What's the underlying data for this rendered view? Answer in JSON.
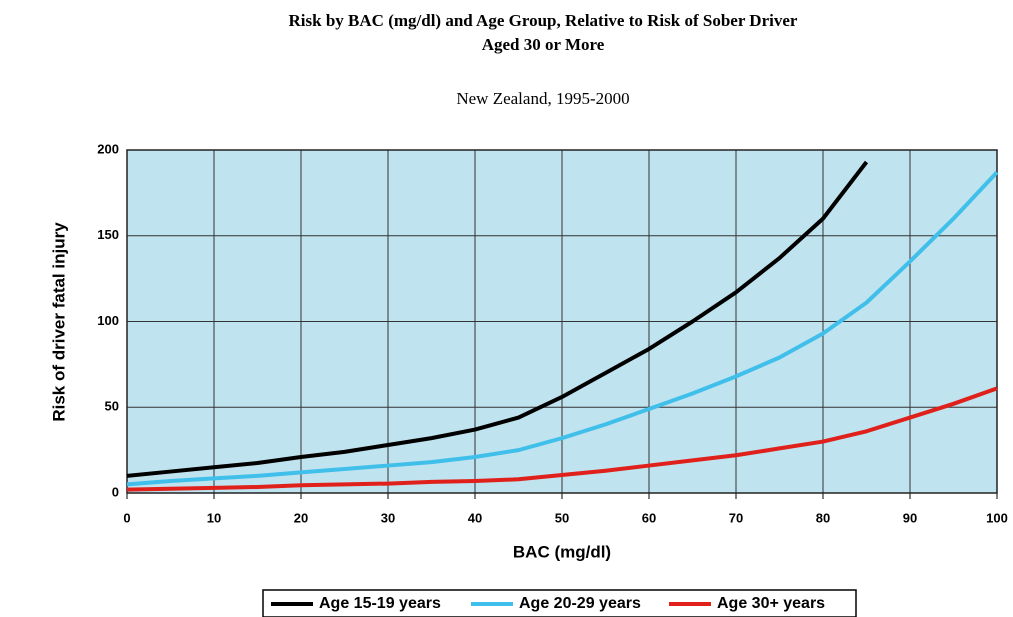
{
  "chart_data": {
    "type": "line",
    "title": "Risk by BAC (mg/dl) and Age Group, Relative to Risk of Sober Driver",
    "title_line2": "Aged 30 or More",
    "subtitle": "New Zealand, 1995-2000",
    "x_label": "BAC (mg/dl)",
    "y_label": "Risk of driver fatal injury",
    "x": [
      0,
      5,
      10,
      15,
      20,
      25,
      30,
      35,
      40,
      45,
      50,
      55,
      60,
      65,
      70,
      75,
      80,
      85,
      90,
      95,
      100
    ],
    "series": [
      {
        "name": "Age 15-19 years",
        "color": "#000000",
        "values": [
          10,
          12.5,
          15,
          17.5,
          21,
          24,
          28,
          32,
          37,
          44,
          56,
          70,
          84,
          100,
          117,
          137,
          160,
          193,
          null,
          null,
          null
        ]
      },
      {
        "name": "Age 20-29 years",
        "color": "#3fbfea",
        "values": [
          5,
          7,
          8.5,
          10,
          12,
          14,
          16,
          18,
          21,
          25,
          32,
          40,
          49,
          58,
          68,
          79,
          93,
          111,
          135,
          160,
          187
        ]
      },
      {
        "name": "Age 30+ years",
        "color": "#e0201b",
        "values": [
          2,
          2.5,
          3,
          3.5,
          4.5,
          5,
          5.5,
          6.5,
          7,
          8,
          10.5,
          13,
          16,
          19,
          22,
          26,
          30,
          36,
          44,
          52,
          61
        ]
      }
    ],
    "xlim": [
      0,
      100
    ],
    "xticks": [
      0,
      10,
      20,
      30,
      40,
      50,
      60,
      70,
      80,
      90,
      100
    ],
    "ylim": [
      0,
      200
    ],
    "yticks": [
      0,
      50,
      100,
      150,
      200
    ],
    "grid": true,
    "legend": "bottom"
  }
}
